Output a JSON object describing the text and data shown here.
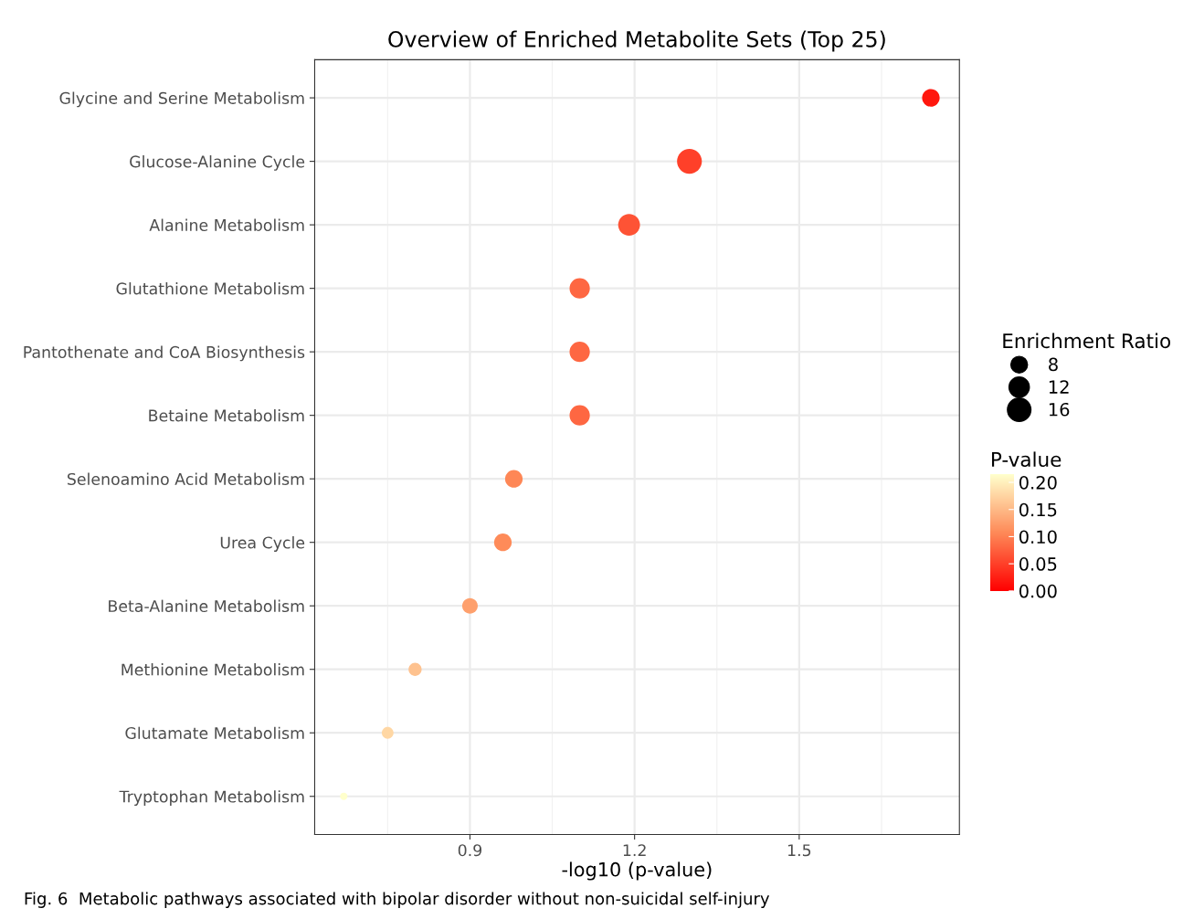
{
  "chart_data": {
    "type": "bubble",
    "title": "Overview of Enriched Metabolite Sets (Top 25)",
    "xlabel": "-log10 (p-value)",
    "legend_title": "Enrichment Ratio",
    "clabel": "P-value",
    "categories": [
      "Glycine and Serine Metabolism",
      "Glucose-Alanine Cycle",
      "Alanine Metabolism",
      "Glutathione Metabolism",
      "Pantothenate and CoA Biosynthesis",
      "Betaine Metabolism",
      "Selenoamino Acid Metabolism",
      "Urea Cycle",
      "Beta-Alanine Metabolism",
      "Methionine Metabolism",
      "Glutamate Metabolism",
      "Tryptophan Metabolism"
    ],
    "values": [
      1.74,
      1.3,
      1.19,
      1.1,
      1.1,
      1.1,
      0.98,
      0.96,
      0.9,
      0.8,
      0.75,
      0.67
    ],
    "sizes": [
      9,
      18,
      14,
      12,
      12,
      12,
      9,
      9,
      7,
      5,
      4,
      1.6
    ],
    "cvalues": [
      0.018,
      0.05,
      0.065,
      0.08,
      0.08,
      0.08,
      0.105,
      0.109,
      0.127,
      0.158,
      0.178,
      0.215
    ],
    "size_legend": [
      8,
      12,
      16
    ],
    "clim": [
      0,
      0.215
    ],
    "cticks": [
      {
        "value": 0,
        "label": "0.00"
      },
      {
        "value": 0.05,
        "label": "0.05"
      },
      {
        "value": 0.1,
        "label": "0.10"
      },
      {
        "value": 0.15,
        "label": "0.15"
      },
      {
        "value": 0.2,
        "label": "0.20"
      }
    ],
    "xlim": [
      0.617,
      1.792
    ],
    "xticks": [
      0.9,
      1.2,
      1.5
    ],
    "grid": true,
    "orientation": "horizontal",
    "annotations": [
      "Fig. 6  Metabolic pathways associated with bipolar disorder without non-suicidal self-injury"
    ]
  }
}
